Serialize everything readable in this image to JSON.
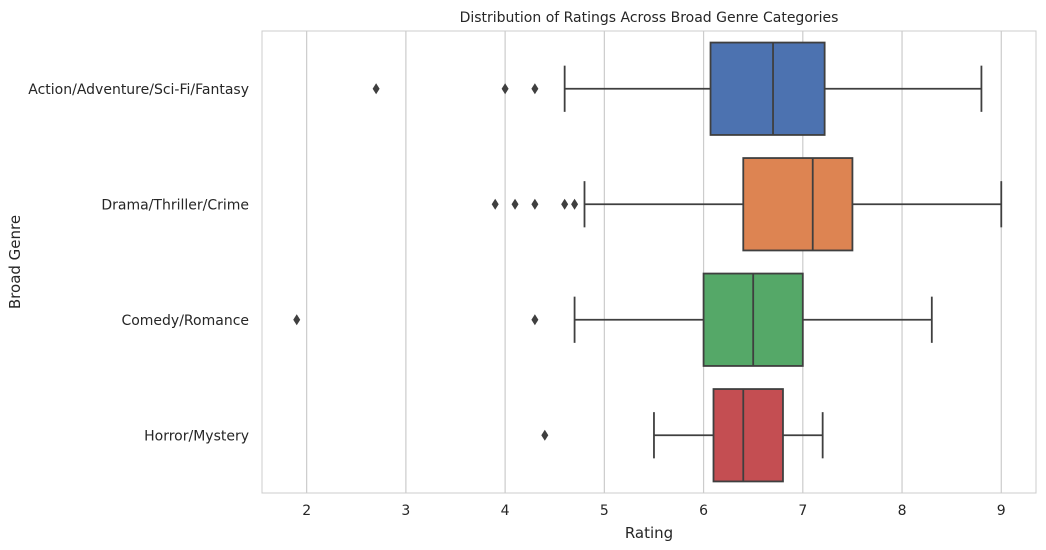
{
  "chart_data": {
    "type": "boxplot",
    "orientation": "horizontal",
    "title": "Distribution of Ratings Across Broad Genre Categories",
    "xlabel": "Rating",
    "ylabel": "Broad Genre",
    "xlim": [
      1.55,
      9.35
    ],
    "xticks": [
      2,
      3,
      4,
      5,
      6,
      7,
      8,
      9
    ],
    "grid": "vertical",
    "categories": [
      "Action/Adventure/Sci-Fi/Fantasy",
      "Drama/Thriller/Crime",
      "Comedy/Romance",
      "Horror/Mystery"
    ],
    "boxes": [
      {
        "category": "Action/Adventure/Sci-Fi/Fantasy",
        "whisker_low": 4.6,
        "q1": 6.07,
        "median": 6.7,
        "q3": 7.22,
        "whisker_high": 8.8,
        "outliers": [
          2.7,
          4.0,
          4.3
        ],
        "color": "#4c72b0"
      },
      {
        "category": "Drama/Thriller/Crime",
        "whisker_low": 4.8,
        "q1": 6.4,
        "median": 7.1,
        "q3": 7.5,
        "whisker_high": 9.0,
        "outliers": [
          3.9,
          4.1,
          4.3,
          4.6,
          4.7
        ],
        "color": "#dd8452"
      },
      {
        "category": "Comedy/Romance",
        "whisker_low": 4.7,
        "q1": 6.0,
        "median": 6.5,
        "q3": 7.0,
        "whisker_high": 8.3,
        "outliers": [
          1.9,
          4.3
        ],
        "color": "#55a868"
      },
      {
        "category": "Horror/Mystery",
        "whisker_low": 5.5,
        "q1": 6.1,
        "median": 6.4,
        "q3": 6.8,
        "whisker_high": 7.2,
        "outliers": [
          4.4
        ],
        "color": "#c44e52"
      }
    ]
  }
}
